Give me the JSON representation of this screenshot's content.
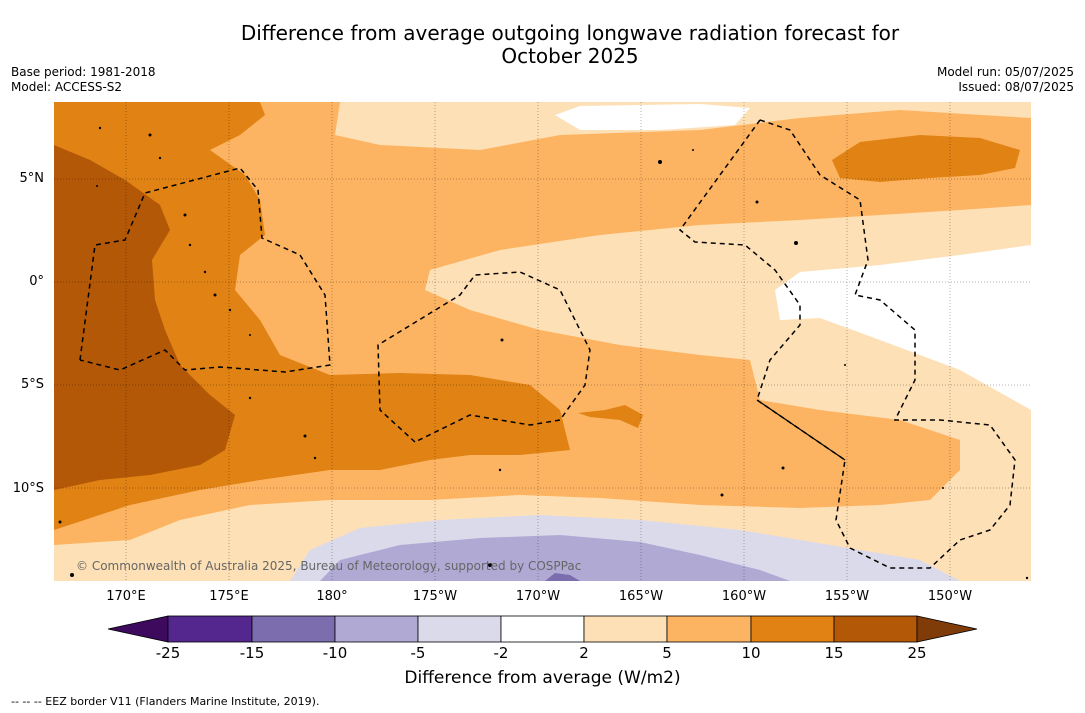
{
  "title_line1": "Difference from average outgoing longwave radiation forecast for",
  "title_line2": "October 2025",
  "base_period": "Base period: 1981-2018",
  "model": "Model: ACCESS-S2",
  "model_run": "Model run: 05/07/2025",
  "issued": "Issued: 08/07/2025",
  "lat_labels": [
    "5°N",
    "0°",
    "5°S",
    "10°S"
  ],
  "lon_labels": [
    "170°E",
    "175°E",
    "180°",
    "175°W",
    "170°W",
    "165°W",
    "160°W",
    "155°W",
    "150°W"
  ],
  "colorbar": {
    "title": "Difference from average (W/m2)",
    "ticks": [
      "-25",
      "-15",
      "-10",
      "-5",
      "-2",
      "2",
      "5",
      "10",
      "15",
      "25"
    ],
    "colors": {
      "below_-25": "#3d0a5e",
      "-25_-15": "#54278f",
      "-15_-10": "#7c6daf",
      "-10_-5": "#b0a9d4",
      "-5_-2": "#dadaeb",
      "-2_2": "#ffffff",
      "2_5": "#fee0b6",
      "5_10": "#fdb462",
      "10_15": "#e08214",
      "15_25": "#b35806",
      "above_25": "#7f3b08"
    }
  },
  "copyright": "© Commonwealth of Australia 2025, Bureau of Meteorology, supported by COSPPac",
  "footer": "--  --  -- EEZ border V11 (Flanders Marine Institute, 2019)."
}
